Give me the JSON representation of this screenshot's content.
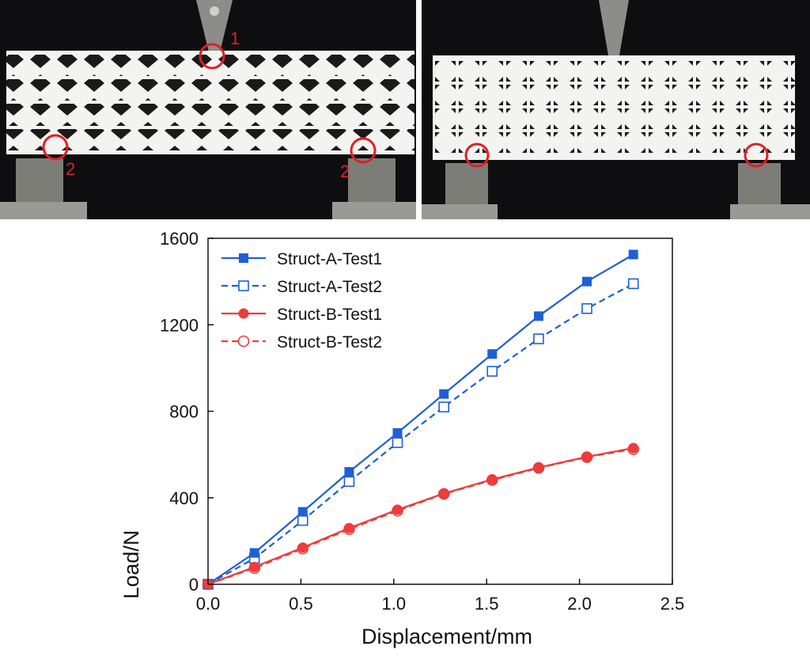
{
  "photos": {
    "left": {
      "callouts": [
        "1",
        "2",
        "2"
      ],
      "description_icon": "lattice-beam-photo"
    },
    "right": {
      "description_icon": "lattice-beam-photo"
    }
  },
  "colors": {
    "blue": "#1f5fd6",
    "red": "#ee3b3b",
    "callout": "#e01f26"
  },
  "chart_data": {
    "type": "line",
    "xlabel": "Displacement/mm",
    "ylabel": "Load/N",
    "xlim": [
      0.0,
      2.5
    ],
    "ylim": [
      0,
      1600
    ],
    "xticks": [
      "0.0",
      "0.5",
      "1.0",
      "1.5",
      "2.0",
      "2.5"
    ],
    "yticks": [
      "0",
      "400",
      "800",
      "1200",
      "1600"
    ],
    "grid": false,
    "legend_position": "top-left",
    "series": [
      {
        "name": "Struct-A-Test1",
        "color": "#1f5fd6",
        "dash": false,
        "marker": "filled-square",
        "x": [
          0.0,
          0.25,
          0.51,
          0.76,
          1.02,
          1.27,
          1.53,
          1.78,
          2.04,
          2.29
        ],
        "y": [
          0,
          145,
          335,
          520,
          700,
          880,
          1065,
          1240,
          1400,
          1525
        ]
      },
      {
        "name": "Struct-A-Test2",
        "color": "#1f5fd6",
        "dash": true,
        "marker": "open-square",
        "x": [
          0.0,
          0.25,
          0.51,
          0.76,
          1.02,
          1.27,
          1.53,
          1.78,
          2.04,
          2.29
        ],
        "y": [
          0,
          120,
          295,
          475,
          655,
          820,
          985,
          1135,
          1275,
          1390
        ]
      },
      {
        "name": "Struct-B-Test1",
        "color": "#ee3b3b",
        "dash": false,
        "marker": "filled-circle",
        "x": [
          0.0,
          0.25,
          0.51,
          0.76,
          1.02,
          1.27,
          1.53,
          1.78,
          2.04,
          2.29
        ],
        "y": [
          0,
          80,
          170,
          260,
          345,
          420,
          485,
          540,
          590,
          630
        ]
      },
      {
        "name": "Struct-B-Test2",
        "color": "#ee3b3b",
        "dash": true,
        "marker": "open-circle",
        "x": [
          0.0,
          0.25,
          0.51,
          0.76,
          1.02,
          1.27,
          1.53,
          1.78,
          2.04,
          2.29
        ],
        "y": [
          0,
          75,
          165,
          255,
          340,
          418,
          482,
          538,
          588,
          625
        ]
      }
    ]
  }
}
